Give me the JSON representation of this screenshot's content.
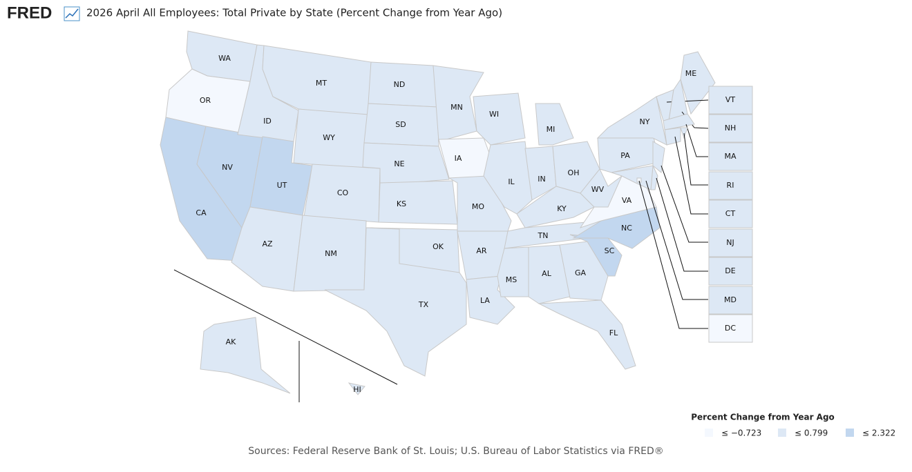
{
  "header": {
    "logo": "FRED",
    "title": "2026 April All Employees: Total Private by State (Percent Change from Year Ago)"
  },
  "chart_data": {
    "type": "choropleth",
    "legend_title": "Percent Change from Year Ago",
    "bins": [
      {
        "value": -0.723,
        "label": "≤ −0.723",
        "color": "#f4f8fe"
      },
      {
        "value": 0.799,
        "label": "≤ 0.799",
        "color": "#dde8f5"
      },
      {
        "value": 2.322,
        "label": "≤ 2.322",
        "color": "#c2d7ef"
      }
    ],
    "states": [
      {
        "label": "WA",
        "color": "#dde8f5"
      },
      {
        "label": "OR",
        "color": "#f4f8fe"
      },
      {
        "label": "CA",
        "color": "#c2d7ef"
      },
      {
        "label": "NV",
        "color": "#c2d7ef"
      },
      {
        "label": "ID",
        "color": "#dde8f5"
      },
      {
        "label": "MT",
        "color": "#dde8f5"
      },
      {
        "label": "WY",
        "color": "#dde8f5"
      },
      {
        "label": "UT",
        "color": "#c2d7ef"
      },
      {
        "label": "CO",
        "color": "#dde8f5"
      },
      {
        "label": "AZ",
        "color": "#dde8f5"
      },
      {
        "label": "NM",
        "color": "#dde8f5"
      },
      {
        "label": "ND",
        "color": "#dde8f5"
      },
      {
        "label": "SD",
        "color": "#dde8f5"
      },
      {
        "label": "NE",
        "color": "#dde8f5"
      },
      {
        "label": "KS",
        "color": "#dde8f5"
      },
      {
        "label": "OK",
        "color": "#dde8f5"
      },
      {
        "label": "TX",
        "color": "#dde8f5"
      },
      {
        "label": "MN",
        "color": "#dde8f5"
      },
      {
        "label": "IA",
        "color": "#f4f8fe"
      },
      {
        "label": "MO",
        "color": "#dde8f5"
      },
      {
        "label": "AR",
        "color": "#dde8f5"
      },
      {
        "label": "LA",
        "color": "#dde8f5"
      },
      {
        "label": "WI",
        "color": "#dde8f5"
      },
      {
        "label": "IL",
        "color": "#dde8f5"
      },
      {
        "label": "MI",
        "color": "#dde8f5"
      },
      {
        "label": "IN",
        "color": "#dde8f5"
      },
      {
        "label": "OH",
        "color": "#dde8f5"
      },
      {
        "label": "KY",
        "color": "#dde8f5"
      },
      {
        "label": "TN",
        "color": "#dde8f5"
      },
      {
        "label": "MS",
        "color": "#dde8f5"
      },
      {
        "label": "AL",
        "color": "#dde8f5"
      },
      {
        "label": "GA",
        "color": "#dde8f5"
      },
      {
        "label": "FL",
        "color": "#dde8f5"
      },
      {
        "label": "SC",
        "color": "#c2d7ef"
      },
      {
        "label": "NC",
        "color": "#c2d7ef"
      },
      {
        "label": "VA",
        "color": "#f4f8fe"
      },
      {
        "label": "WV",
        "color": "#dde8f5"
      },
      {
        "label": "PA",
        "color": "#dde8f5"
      },
      {
        "label": "NY",
        "color": "#dde8f5"
      },
      {
        "label": "ME",
        "color": "#dde8f5"
      },
      {
        "label": "AK",
        "color": "#dde8f5"
      },
      {
        "label": "HI",
        "color": "#dde8f5"
      },
      {
        "label": "VT",
        "color": "#dde8f5"
      },
      {
        "label": "NH",
        "color": "#dde8f5"
      },
      {
        "label": "MA",
        "color": "#dde8f5"
      },
      {
        "label": "RI",
        "color": "#dde8f5"
      },
      {
        "label": "CT",
        "color": "#dde8f5"
      },
      {
        "label": "NJ",
        "color": "#dde8f5"
      },
      {
        "label": "DE",
        "color": "#dde8f5"
      },
      {
        "label": "MD",
        "color": "#dde8f5"
      },
      {
        "label": "DC",
        "color": "#f4f8fe"
      }
    ]
  },
  "source": "Sources: Federal Reserve Bank of St. Louis; U.S. Bureau of Labor Statistics via FRED®"
}
